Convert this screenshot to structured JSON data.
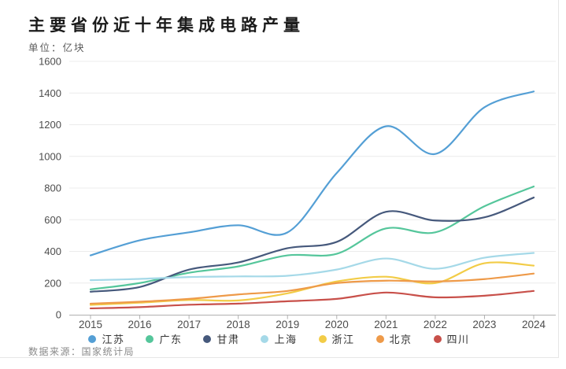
{
  "header": {
    "title": "主要省份近十年集成电路产量",
    "unit_label": "单位：亿块"
  },
  "footer": {
    "source_label": "数据来源：国家统计局"
  },
  "chart_data": {
    "type": "line",
    "smooth": true,
    "title": "主要省份近十年集成电路产量",
    "ylabel": "亿块",
    "xlabel": "",
    "categories": [
      "2015",
      "2016",
      "2017",
      "2018",
      "2019",
      "2020",
      "2021",
      "2022",
      "2023",
      "2024"
    ],
    "series": [
      {
        "name": "江苏",
        "color": "#549FD5",
        "values": [
          375,
          470,
          520,
          565,
          520,
          895,
          1190,
          1015,
          1310,
          1410
        ]
      },
      {
        "name": "广东",
        "color": "#55C69B",
        "values": [
          160,
          200,
          265,
          305,
          375,
          385,
          545,
          520,
          685,
          810
        ]
      },
      {
        "name": "甘肃",
        "color": "#46597C",
        "values": [
          145,
          175,
          285,
          330,
          420,
          460,
          650,
          595,
          615,
          740
        ]
      },
      {
        "name": "上海",
        "color": "#A5D9E8",
        "values": [
          218,
          226,
          238,
          242,
          246,
          285,
          355,
          290,
          360,
          390
        ]
      },
      {
        "name": "浙江",
        "color": "#F2CC47",
        "values": [
          62,
          76,
          93,
          90,
          135,
          210,
          240,
          200,
          325,
          310
        ]
      },
      {
        "name": "北京",
        "color": "#EE9A49",
        "values": [
          70,
          82,
          100,
          128,
          150,
          200,
          215,
          210,
          225,
          260
        ]
      },
      {
        "name": "四川",
        "color": "#C8504A",
        "values": [
          40,
          48,
          63,
          70,
          85,
          100,
          140,
          110,
          120,
          150
        ]
      }
    ],
    "ylim": [
      0,
      1600
    ],
    "ytick_step": 200,
    "grid": true,
    "legend_position": "bottom",
    "colors": {
      "gridline": "#ececec",
      "axis": "#b0b0b0",
      "tick_label": "#4d4d4d",
      "title_text": "#1b1b1b",
      "subtitle_text": "#5a5a5a",
      "source_text": "#8a8a8a"
    }
  }
}
